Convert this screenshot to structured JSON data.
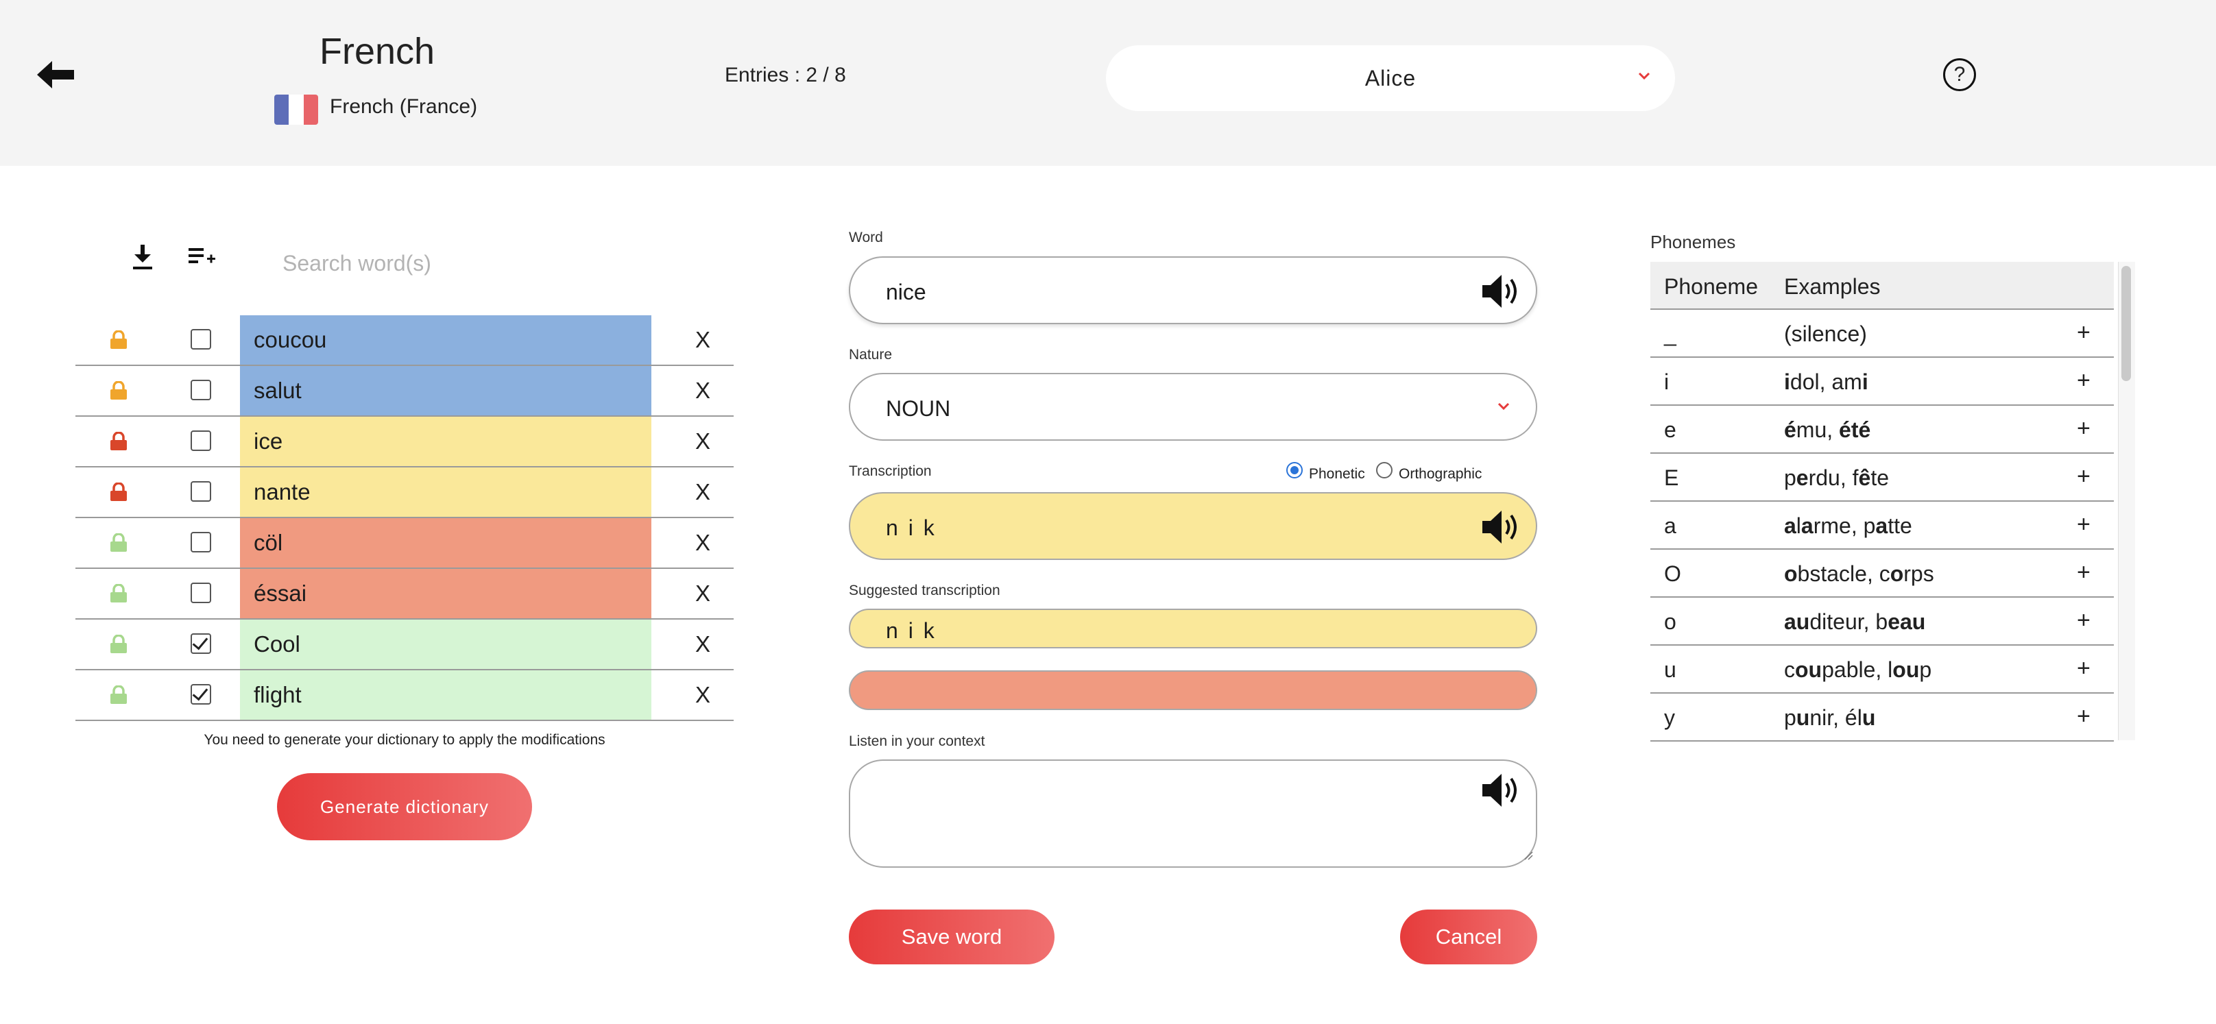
{
  "header": {
    "title": "French",
    "subtitle": "French (France)",
    "entries": "Entries : 2 / 8",
    "user": "Alice",
    "help": "?"
  },
  "left": {
    "search_placeholder": "Search word(s)",
    "words": [
      {
        "text": "coucou",
        "lock_color": "#f0a52c",
        "checked": false,
        "bg": "#8bb0de"
      },
      {
        "text": "salut",
        "lock_color": "#f0a52c",
        "checked": false,
        "bg": "#8bb0de"
      },
      {
        "text": "ice",
        "lock_color": "#d9462a",
        "checked": false,
        "bg": "#fae89a"
      },
      {
        "text": "nante",
        "lock_color": "#d9462a",
        "checked": false,
        "bg": "#fae89a"
      },
      {
        "text": "cöl",
        "lock_color": "#a7d88d",
        "checked": false,
        "bg": "#f09a80"
      },
      {
        "text": "éssai",
        "lock_color": "#a7d88d",
        "checked": false,
        "bg": "#f09a80"
      },
      {
        "text": "Cool",
        "lock_color": "#a7d88d",
        "checked": true,
        "bg": "#d6f5d4"
      },
      {
        "text": "flight",
        "lock_color": "#a7d88d",
        "checked": true,
        "bg": "#d6f5d4"
      }
    ],
    "delete_label": "X",
    "notice": "You need to generate your dictionary to apply the modifications",
    "generate_button": "Generate dictionary"
  },
  "form": {
    "word_label": "Word",
    "word_value": "nice",
    "nature_label": "Nature",
    "nature_value": "NOUN",
    "transcription_label": "Transcription",
    "phonetic_label": "Phonetic",
    "orthographic_label": "Orthographic",
    "transcription_value": "n i k",
    "suggested_label": "Suggested transcription",
    "suggested_value": "n i k",
    "listen_label": "Listen in your context",
    "save_button": "Save word",
    "cancel_button": "Cancel",
    "colors": {
      "yellow": "#fae89a",
      "salmon": "#f09a80",
      "accent": "#e63b3b"
    }
  },
  "phonemes": {
    "title": "Phonemes",
    "col_phoneme": "Phoneme",
    "col_examples": "Examples",
    "rows": [
      {
        "symbol": "_",
        "examples": [
          {
            "t": "(silence)",
            "b": false
          }
        ]
      },
      {
        "symbol": "i",
        "examples": [
          {
            "t": "i",
            "b": true
          },
          {
            "t": "dol, am",
            "b": false
          },
          {
            "t": "i",
            "b": true
          }
        ]
      },
      {
        "symbol": "e",
        "examples": [
          {
            "t": "é",
            "b": true
          },
          {
            "t": "mu, ",
            "b": false
          },
          {
            "t": "été",
            "b": true
          }
        ]
      },
      {
        "symbol": "E",
        "examples": [
          {
            "t": "p",
            "b": false
          },
          {
            "t": "e",
            "b": true
          },
          {
            "t": "rdu, f",
            "b": false
          },
          {
            "t": "ê",
            "b": true
          },
          {
            "t": "te",
            "b": false
          }
        ]
      },
      {
        "symbol": "a",
        "examples": [
          {
            "t": "a",
            "b": true
          },
          {
            "t": "l",
            "b": false
          },
          {
            "t": "a",
            "b": true
          },
          {
            "t": "rme, p",
            "b": false
          },
          {
            "t": "a",
            "b": true
          },
          {
            "t": "tte",
            "b": false
          }
        ]
      },
      {
        "symbol": "O",
        "examples": [
          {
            "t": "o",
            "b": true
          },
          {
            "t": "bstacle, c",
            "b": false
          },
          {
            "t": "o",
            "b": true
          },
          {
            "t": "rps",
            "b": false
          }
        ]
      },
      {
        "symbol": "o",
        "examples": [
          {
            "t": "au",
            "b": true
          },
          {
            "t": "diteur, b",
            "b": false
          },
          {
            "t": "eau",
            "b": true
          }
        ]
      },
      {
        "symbol": "u",
        "examples": [
          {
            "t": "c",
            "b": false
          },
          {
            "t": "ou",
            "b": true
          },
          {
            "t": "pable, l",
            "b": false
          },
          {
            "t": "ou",
            "b": true
          },
          {
            "t": "p",
            "b": false
          }
        ]
      },
      {
        "symbol": "y",
        "examples": [
          {
            "t": "p",
            "b": false
          },
          {
            "t": "u",
            "b": true
          },
          {
            "t": "nir, él",
            "b": false
          },
          {
            "t": "u",
            "b": true
          }
        ]
      }
    ],
    "add_label": "+"
  }
}
